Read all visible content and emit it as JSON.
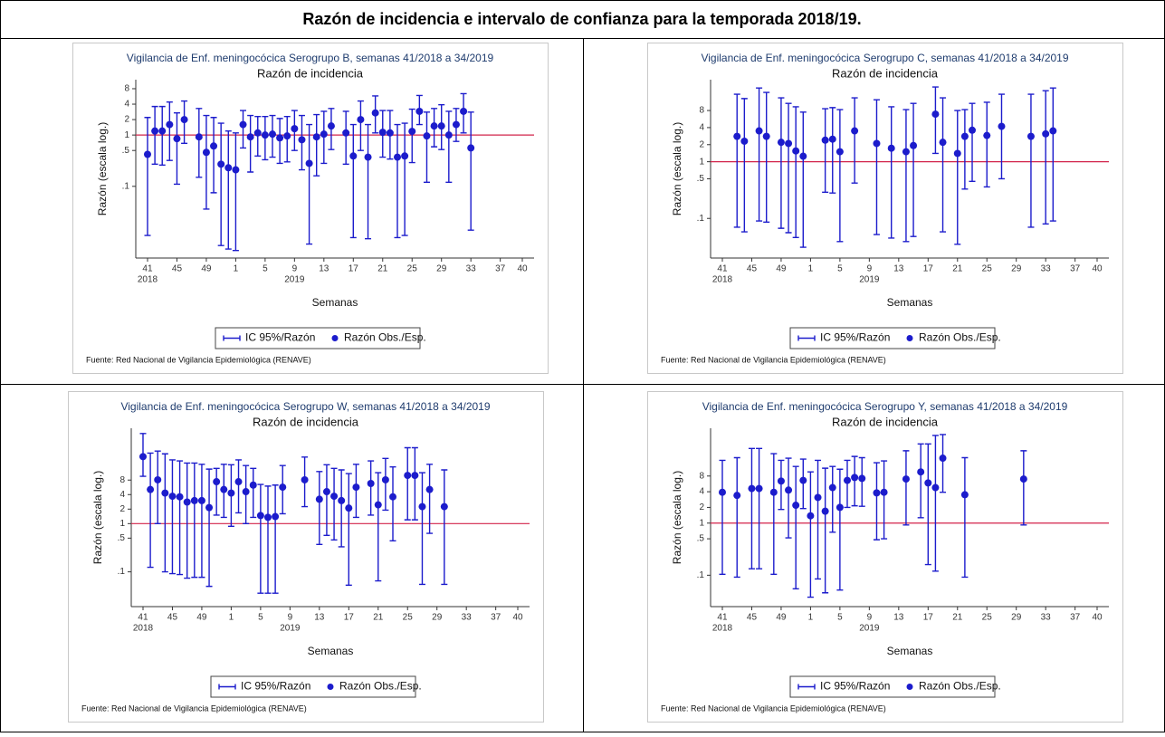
{
  "page_title": "Razón de incidencia e intervalo de confianza para la temporada 2018/19.",
  "chart_data": [
    {
      "type": "errorbar",
      "title": "Vigilancia de Enf. meningocócica Serogrupo B, semanas 41/2018 a 34/2019",
      "subtitle": "Razón de incidencia",
      "ylabel": "Razón (escala log.)",
      "xlabel": "Semanas",
      "source": "Fuente: Red Nacional de Vigilancia Epidemiológica (RENAVE)",
      "log_y": true,
      "ylim": [
        0.004,
        12
      ],
      "yticks": [
        {
          "value": 0.1,
          "label": ".1"
        },
        {
          "value": 0.5,
          "label": ".5"
        },
        1,
        2,
        4,
        8
      ],
      "xlim": [
        39.4,
        93.6
      ],
      "xticks": [
        41,
        45,
        49,
        {
          "value": 53,
          "label": "1"
        },
        {
          "value": 57,
          "label": "5"
        },
        {
          "value": 61,
          "label": "9"
        },
        {
          "value": 65,
          "label": "13"
        },
        {
          "value": 69,
          "label": "17"
        },
        {
          "value": 73,
          "label": "21"
        },
        {
          "value": 77,
          "label": "25"
        },
        {
          "value": 81,
          "label": "29"
        },
        {
          "value": 85,
          "label": "33"
        },
        {
          "value": 89,
          "label": "37"
        },
        {
          "value": 92,
          "label": "40"
        }
      ],
      "xtick_years": [
        {
          "value": 41,
          "label": "2018"
        },
        {
          "value": 61,
          "label": "2019"
        }
      ],
      "reference_line": 1,
      "reference_color": "#d2234a",
      "x": [
        41,
        42,
        43,
        44,
        45,
        46,
        48,
        49,
        50,
        51,
        52,
        53,
        54,
        55,
        56,
        57,
        58,
        59,
        60,
        61,
        62,
        63,
        64,
        65,
        66,
        68,
        69,
        70,
        71,
        72,
        73,
        74,
        75,
        76,
        77,
        78,
        79,
        80,
        81,
        82,
        83,
        84,
        85
      ],
      "series": [
        {
          "name": "Razón Obs./Esp.",
          "interval_name": "IC 95%/Razón",
          "color": "#1c1ccc",
          "values": [
            0.42,
            1.2,
            1.2,
            1.6,
            0.85,
            2.0,
            0.92,
            0.46,
            0.61,
            0.27,
            0.23,
            0.21,
            1.6,
            0.92,
            1.1,
            1.0,
            1.04,
            0.88,
            0.96,
            1.33,
            0.81,
            0.28,
            0.92,
            1.04,
            1.5,
            1.1,
            0.39,
            2.0,
            0.37,
            2.7,
            1.13,
            1.1,
            0.37,
            0.39,
            1.18,
            2.9,
            0.96,
            1.5,
            1.5,
            1.0,
            1.6,
            2.9,
            0.56
          ],
          "lower": [
            0.011,
            0.27,
            0.26,
            0.32,
            0.11,
            0.69,
            0.15,
            0.036,
            0.075,
            0.007,
            0.006,
            0.0056,
            0.56,
            0.19,
            0.39,
            0.33,
            0.37,
            0.28,
            0.3,
            0.5,
            0.21,
            0.0075,
            0.16,
            0.28,
            0.52,
            0.27,
            0.01,
            0.5,
            0.0095,
            1.1,
            0.37,
            0.34,
            0.01,
            0.011,
            0.29,
            1.6,
            0.12,
            0.59,
            0.52,
            0.12,
            0.75,
            1.1,
            0.014
          ],
          "upper": [
            2.2,
            3.6,
            3.6,
            4.4,
            2.7,
            4.6,
            3.3,
            2.4,
            2.2,
            1.7,
            1.2,
            1.1,
            3.0,
            2.4,
            2.3,
            2.3,
            2.4,
            2.1,
            2.3,
            3.0,
            2.4,
            1.6,
            2.5,
            2.9,
            3.3,
            2.9,
            1.6,
            4.6,
            1.6,
            5.8,
            3.0,
            3.0,
            1.6,
            1.7,
            3.2,
            5.9,
            2.8,
            3.3,
            3.9,
            2.9,
            3.3,
            6.4,
            2.8
          ]
        }
      ]
    },
    {
      "type": "errorbar",
      "title": "Vigilancia de Enf. meningocócica Serogrupo C, semanas 41/2018 a 34/2019",
      "subtitle": "Razón de incidencia",
      "ylabel": "Razón (escala log.)",
      "xlabel": "Semanas",
      "source": "Fuente: Red Nacional de Vigilancia Epidemiológica (RENAVE)",
      "log_y": true,
      "ylim": [
        0.02,
        28
      ],
      "yticks": [
        {
          "value": 0.1,
          "label": ".1"
        },
        {
          "value": 0.5,
          "label": ".5"
        },
        1,
        2,
        4,
        8
      ],
      "xlim": [
        39.4,
        93.6
      ],
      "xticks": [
        41,
        45,
        49,
        {
          "value": 53,
          "label": "1"
        },
        {
          "value": 57,
          "label": "5"
        },
        {
          "value": 61,
          "label": "9"
        },
        {
          "value": 65,
          "label": "13"
        },
        {
          "value": 69,
          "label": "17"
        },
        {
          "value": 73,
          "label": "21"
        },
        {
          "value": 77,
          "label": "25"
        },
        {
          "value": 81,
          "label": "29"
        },
        {
          "value": 85,
          "label": "33"
        },
        {
          "value": 89,
          "label": "37"
        },
        {
          "value": 92,
          "label": "40"
        }
      ],
      "xtick_years": [
        {
          "value": 41,
          "label": "2018"
        },
        {
          "value": 61,
          "label": "2019"
        }
      ],
      "reference_line": 1,
      "reference_color": "#d2234a",
      "x": [
        43,
        44,
        46,
        47,
        49,
        50,
        51,
        52,
        55,
        56,
        57,
        59,
        62,
        64,
        66,
        67,
        70,
        71,
        73,
        74,
        75,
        77,
        79,
        83,
        85,
        86
      ],
      "series": [
        {
          "name": "Razón Obs./Esp.",
          "interval_name": "IC 95%/Razón",
          "color": "#1c1ccc",
          "values": [
            2.8,
            2.3,
            3.5,
            2.8,
            2.2,
            2.1,
            1.55,
            1.25,
            2.4,
            2.5,
            1.5,
            3.5,
            2.1,
            1.73,
            1.5,
            1.93,
            6.9,
            2.2,
            1.4,
            2.8,
            3.6,
            2.9,
            4.2,
            2.8,
            3.1,
            3.5
          ],
          "lower": [
            0.07,
            0.058,
            0.09,
            0.086,
            0.067,
            0.056,
            0.046,
            0.031,
            0.29,
            0.28,
            0.039,
            0.42,
            0.052,
            0.045,
            0.039,
            0.048,
            1.4,
            0.058,
            0.035,
            0.33,
            0.45,
            0.36,
            0.5,
            0.07,
            0.08,
            0.09
          ],
          "upper": [
            15.5,
            13,
            20,
            16.7,
            13.4,
            10.7,
            9.3,
            7.5,
            8.6,
            9.0,
            8.3,
            13.4,
            12.4,
            9.3,
            8.3,
            10.7,
            20.8,
            13.4,
            8.0,
            8.3,
            10.7,
            11.2,
            15.5,
            15.5,
            17.9,
            20
          ]
        }
      ]
    },
    {
      "type": "errorbar",
      "title": "Vigilancia de Enf. meningocócica Serogrupo W, semanas 41/2018 a 34/2019",
      "subtitle": "Razón de incidencia",
      "ylabel": "Razón (escala log.)",
      "xlabel": "Semanas",
      "source": "Fuente: Red Nacional de Vigilancia Epidemiológica (RENAVE)",
      "log_y": true,
      "ylim": [
        0.019,
        95
      ],
      "yticks": [
        {
          "value": 0.1,
          "label": ".1"
        },
        {
          "value": 0.5,
          "label": ".5"
        },
        1,
        2,
        4,
        8
      ],
      "xlim": [
        39.4,
        93.6
      ],
      "xticks": [
        41,
        45,
        49,
        {
          "value": 53,
          "label": "1"
        },
        {
          "value": 57,
          "label": "5"
        },
        {
          "value": 61,
          "label": "9"
        },
        {
          "value": 65,
          "label": "13"
        },
        {
          "value": 69,
          "label": "17"
        },
        {
          "value": 73,
          "label": "21"
        },
        {
          "value": 77,
          "label": "25"
        },
        {
          "value": 81,
          "label": "29"
        },
        {
          "value": 85,
          "label": "33"
        },
        {
          "value": 89,
          "label": "37"
        },
        {
          "value": 92,
          "label": "40"
        }
      ],
      "xtick_years": [
        {
          "value": 41,
          "label": "2018"
        },
        {
          "value": 61,
          "label": "2019"
        }
      ],
      "reference_line": 1,
      "reference_color": "#d2234a",
      "x": [
        41,
        42,
        43,
        44,
        45,
        46,
        47,
        48,
        49,
        50,
        51,
        52,
        53,
        54,
        55,
        56,
        57,
        58,
        59,
        60,
        63,
        65,
        66,
        67,
        68,
        69,
        70,
        72,
        73,
        74,
        75,
        77,
        78,
        79,
        80,
        82
      ],
      "series": [
        {
          "name": "Razón Obs./Esp.",
          "interval_name": "IC 95%/Razón",
          "color": "#1c1ccc",
          "values": [
            24.5,
            5.1,
            8.1,
            4.3,
            3.7,
            3.6,
            2.8,
            3.0,
            3.0,
            2.15,
            7.4,
            5.1,
            4.3,
            7.4,
            4.6,
            6.3,
            1.47,
            1.35,
            1.4,
            5.7,
            8.1,
            3.2,
            4.6,
            3.7,
            3.0,
            2.1,
            5.7,
            6.8,
            2.45,
            8.1,
            3.6,
            10,
            10,
            2.25,
            5.1,
            2.25
          ],
          "lower": [
            9.6,
            0.124,
            1.0,
            0.1,
            0.092,
            0.088,
            0.074,
            0.077,
            0.077,
            0.05,
            1.5,
            1.35,
            0.88,
            1.67,
            1.0,
            1.35,
            0.036,
            0.036,
            0.036,
            1.6,
            2.25,
            0.37,
            0.57,
            0.46,
            0.33,
            0.053,
            1.35,
            1.5,
            0.065,
            1.9,
            0.44,
            1.2,
            1.2,
            0.055,
            0.63,
            0.055
          ],
          "upper": [
            74,
            29,
            32,
            28,
            21,
            20,
            18,
            18,
            17,
            13.5,
            14,
            17,
            16.6,
            21,
            16,
            14,
            6.5,
            6,
            6.3,
            16,
            24,
            12,
            16.6,
            14,
            13,
            10.9,
            17,
            20,
            11.4,
            22.5,
            15,
            37.5,
            37.5,
            11.4,
            17,
            13
          ]
        }
      ]
    },
    {
      "type": "errorbar",
      "title": "Vigilancia de Enf. meningocócica Serogrupo Y, semanas 41/2018 a 34/2019",
      "subtitle": "Razón de incidencia",
      "ylabel": "Razón (escala log.)",
      "xlabel": "Semanas",
      "source": "Fuente: Red Nacional de Vigilancia Epidemiológica (RENAVE)",
      "log_y": true,
      "ylim": [
        0.025,
        66
      ],
      "yticks": [
        {
          "value": 0.1,
          "label": ".1"
        },
        {
          "value": 0.5,
          "label": ".5"
        },
        1,
        2,
        4,
        8
      ],
      "xlim": [
        39.4,
        93.6
      ],
      "xticks": [
        41,
        45,
        49,
        {
          "value": 53,
          "label": "1"
        },
        {
          "value": 57,
          "label": "5"
        },
        {
          "value": 61,
          "label": "9"
        },
        {
          "value": 65,
          "label": "13"
        },
        {
          "value": 69,
          "label": "17"
        },
        {
          "value": 73,
          "label": "21"
        },
        {
          "value": 77,
          "label": "25"
        },
        {
          "value": 81,
          "label": "29"
        },
        {
          "value": 85,
          "label": "33"
        },
        {
          "value": 89,
          "label": "37"
        },
        {
          "value": 92,
          "label": "40"
        }
      ],
      "xtick_years": [
        {
          "value": 41,
          "label": "2018"
        },
        {
          "value": 61,
          "label": "2019"
        }
      ],
      "reference_line": 1,
      "reference_color": "#d2234a",
      "x": [
        41,
        43,
        45,
        46,
        48,
        49,
        50,
        51,
        52,
        53,
        54,
        55,
        56,
        57,
        58,
        59,
        60,
        62,
        63,
        66,
        68,
        69,
        70,
        71,
        74,
        82
      ],
      "series": [
        {
          "name": "Razón Obs./Esp.",
          "interval_name": "IC 95%/Razón",
          "color": "#1c1ccc",
          "values": [
            3.9,
            3.4,
            4.6,
            4.6,
            3.9,
            6.4,
            4.3,
            2.2,
            6.6,
            1.38,
            3.1,
            1.69,
            4.8,
            2.0,
            6.6,
            7.5,
            7.2,
            3.8,
            3.9,
            7.0,
            9.6,
            5.9,
            4.8,
            17.6,
            3.5,
            7.0
          ],
          "lower": [
            0.104,
            0.092,
            0.133,
            0.133,
            0.104,
            1.83,
            0.52,
            0.055,
            1.9,
            0.038,
            0.085,
            0.046,
            0.67,
            0.052,
            2.0,
            2.15,
            2.1,
            0.48,
            0.5,
            0.92,
            1.27,
            0.16,
            0.12,
            3.9,
            0.092,
            0.92
          ],
          "upper": [
            16,
            18,
            27,
            27,
            21.5,
            16,
            17.6,
            12.2,
            16.9,
            9.6,
            16,
            11.3,
            12.2,
            10.8,
            16,
            19,
            18,
            14.4,
            15.6,
            24.4,
            33,
            33,
            48,
            50,
            18,
            24.4
          ]
        }
      ]
    }
  ]
}
